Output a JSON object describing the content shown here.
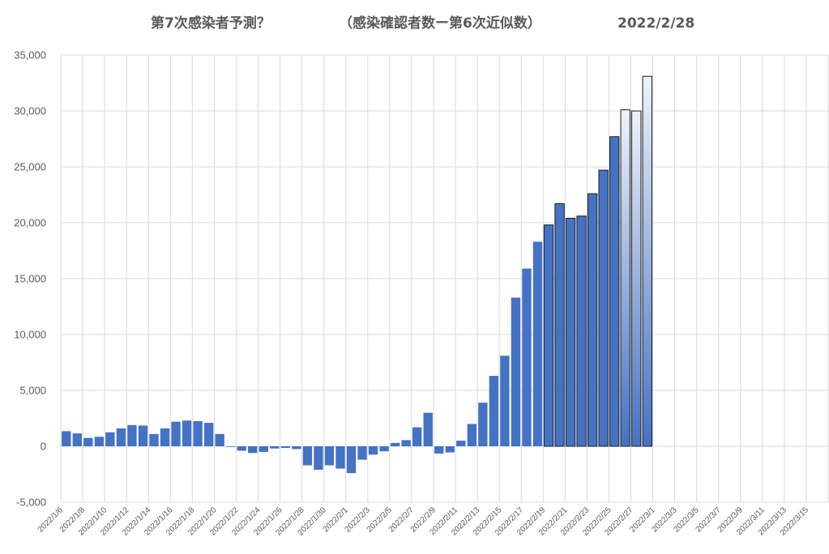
{
  "chart_data": {
    "type": "bar",
    "title_parts": [
      "第7次感染者予測？",
      "（感染確認者数ー第6次近似数）",
      "2022/2/28"
    ],
    "ylim": [
      -5000,
      35000
    ],
    "yticks": [
      "-5,000",
      "0",
      "5,000",
      "10,000",
      "15,000",
      "20,000",
      "25,000",
      "30,000",
      "35,000"
    ],
    "ytick_values": [
      -5000,
      0,
      5000,
      10000,
      15000,
      20000,
      25000,
      30000,
      35000
    ],
    "xtick_labels": [
      "2022/1/6",
      "2022/1/8",
      "2022/1/10",
      "2022/1/12",
      "2022/1/14",
      "2022/1/16",
      "2022/1/18",
      "2022/1/20",
      "2022/1/22",
      "2022/1/24",
      "2022/1/26",
      "2022/1/28",
      "2022/1/30",
      "2022/2/1",
      "2022/2/3",
      "2022/2/5",
      "2022/2/7",
      "2022/2/9",
      "2022/2/11",
      "2022/2/13",
      "2022/2/15",
      "2022/2/17",
      "2022/2/19",
      "2022/2/21",
      "2022/2/23",
      "2022/2/25",
      "2022/2/27",
      "2022/3/1",
      "2022/3/3",
      "2022/3/5",
      "2022/3/7",
      "2022/3/9",
      "2022/3/11",
      "2022/3/13",
      "2022/3/15"
    ],
    "start_date": "2022/1/6",
    "end_date": "2022/3/16",
    "grid": true,
    "legend": "none",
    "colors": {
      "solid": "#4472c4",
      "gradient_top": "#eef2fa",
      "gradient_bottom": "#4472c4",
      "outline": "#1a1a1a",
      "grid": "#d9d9d9",
      "text": "#595959"
    },
    "series": [
      {
        "values": [
          {
            "x": "2022/1/6",
            "y": 1350,
            "style": "solid"
          },
          {
            "x": "2022/1/7",
            "y": 1150,
            "style": "solid"
          },
          {
            "x": "2022/1/8",
            "y": 750,
            "style": "solid"
          },
          {
            "x": "2022/1/9",
            "y": 850,
            "style": "solid"
          },
          {
            "x": "2022/1/10",
            "y": 1250,
            "style": "solid"
          },
          {
            "x": "2022/1/11",
            "y": 1600,
            "style": "solid"
          },
          {
            "x": "2022/1/12",
            "y": 1900,
            "style": "solid"
          },
          {
            "x": "2022/1/13",
            "y": 1850,
            "style": "solid"
          },
          {
            "x": "2022/1/14",
            "y": 1100,
            "style": "solid"
          },
          {
            "x": "2022/1/15",
            "y": 1600,
            "style": "solid"
          },
          {
            "x": "2022/1/16",
            "y": 2200,
            "style": "solid"
          },
          {
            "x": "2022/1/17",
            "y": 2300,
            "style": "solid"
          },
          {
            "x": "2022/1/18",
            "y": 2250,
            "style": "solid"
          },
          {
            "x": "2022/1/19",
            "y": 2100,
            "style": "solid"
          },
          {
            "x": "2022/1/20",
            "y": 1100,
            "style": "solid"
          },
          {
            "x": "2022/1/21",
            "y": -50,
            "style": "solid"
          },
          {
            "x": "2022/1/22",
            "y": -400,
            "style": "solid"
          },
          {
            "x": "2022/1/23",
            "y": -600,
            "style": "solid"
          },
          {
            "x": "2022/1/24",
            "y": -500,
            "style": "solid"
          },
          {
            "x": "2022/1/25",
            "y": -200,
            "style": "solid"
          },
          {
            "x": "2022/1/26",
            "y": -150,
            "style": "solid"
          },
          {
            "x": "2022/1/27",
            "y": -250,
            "style": "solid"
          },
          {
            "x": "2022/1/28",
            "y": -1700,
            "style": "solid"
          },
          {
            "x": "2022/1/29",
            "y": -2100,
            "style": "solid"
          },
          {
            "x": "2022/1/30",
            "y": -1700,
            "style": "solid"
          },
          {
            "x": "2022/1/31",
            "y": -2000,
            "style": "solid"
          },
          {
            "x": "2022/2/1",
            "y": -2400,
            "style": "solid"
          },
          {
            "x": "2022/2/2",
            "y": -1200,
            "style": "solid"
          },
          {
            "x": "2022/2/3",
            "y": -750,
            "style": "solid"
          },
          {
            "x": "2022/2/4",
            "y": -450,
            "style": "solid"
          },
          {
            "x": "2022/2/5",
            "y": 300,
            "style": "solid"
          },
          {
            "x": "2022/2/6",
            "y": 550,
            "style": "solid"
          },
          {
            "x": "2022/2/7",
            "y": 1700,
            "style": "solid"
          },
          {
            "x": "2022/2/8",
            "y": 3000,
            "style": "solid"
          },
          {
            "x": "2022/2/9",
            "y": -650,
            "style": "solid"
          },
          {
            "x": "2022/2/10",
            "y": -550,
            "style": "solid"
          },
          {
            "x": "2022/2/11",
            "y": 500,
            "style": "solid"
          },
          {
            "x": "2022/2/12",
            "y": 2000,
            "style": "solid"
          },
          {
            "x": "2022/2/13",
            "y": 3900,
            "style": "solid"
          },
          {
            "x": "2022/2/14",
            "y": 6300,
            "style": "solid"
          },
          {
            "x": "2022/2/15",
            "y": 8100,
            "style": "solid"
          },
          {
            "x": "2022/2/16",
            "y": 13300,
            "style": "solid"
          },
          {
            "x": "2022/2/17",
            "y": 15900,
            "style": "solid"
          },
          {
            "x": "2022/2/18",
            "y": 18300,
            "style": "solid"
          },
          {
            "x": "2022/2/19",
            "y": 19800,
            "style": "outlined"
          },
          {
            "x": "2022/2/20",
            "y": 21700,
            "style": "outlined"
          },
          {
            "x": "2022/2/21",
            "y": 20400,
            "style": "outlined"
          },
          {
            "x": "2022/2/22",
            "y": 20600,
            "style": "outlined"
          },
          {
            "x": "2022/2/23",
            "y": 22600,
            "style": "outlined"
          },
          {
            "x": "2022/2/24",
            "y": 24700,
            "style": "outlined"
          },
          {
            "x": "2022/2/25",
            "y": 27700,
            "style": "outlined"
          },
          {
            "x": "2022/2/26",
            "y": 30100,
            "style": "gradient"
          },
          {
            "x": "2022/2/27",
            "y": 30000,
            "style": "gradient"
          },
          {
            "x": "2022/2/28",
            "y": 33100,
            "style": "gradient"
          }
        ]
      }
    ]
  }
}
